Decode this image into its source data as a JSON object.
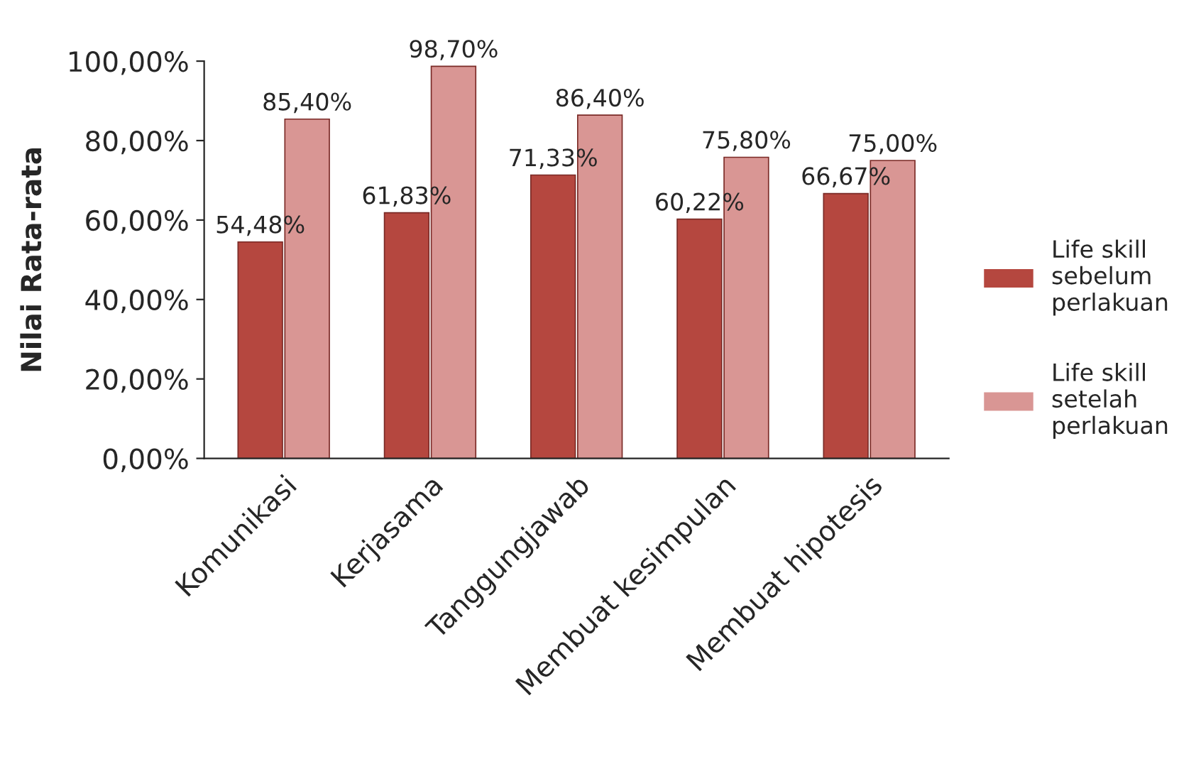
{
  "chart_data": {
    "type": "bar",
    "ylabel": "Nilai Rata-rata",
    "categories": [
      "Komunikasi",
      "Kerjasama",
      "Tanggungjawab",
      "Membuat kesimpulan",
      "Membuat hipotesis"
    ],
    "series": [
      {
        "name": "Life skill sebelum perlakuan",
        "color": "#b5473f",
        "values": [
          54.48,
          61.83,
          71.33,
          60.22,
          66.67
        ],
        "value_labels": [
          "54,48%",
          "61,83%",
          "71,33%",
          "60,22%",
          "66,67%"
        ]
      },
      {
        "name": "Life skill setelah perlakuan",
        "color": "#d99694",
        "values": [
          85.4,
          98.7,
          86.4,
          75.8,
          75.0
        ],
        "value_labels": [
          "85,40%",
          "98,70%",
          "86,40%",
          "75,80%",
          "75,00%"
        ]
      }
    ],
    "ylim": [
      0,
      100
    ],
    "yticks": [
      {
        "value": 0,
        "label": "0,00%"
      },
      {
        "value": 20,
        "label": "20,00%"
      },
      {
        "value": 40,
        "label": "40,00%"
      },
      {
        "value": 60,
        "label": "60,00%"
      },
      {
        "value": 80,
        "label": "80,00%"
      },
      {
        "value": 100,
        "label": "100,00%"
      }
    ],
    "legend": "right",
    "grid": false
  }
}
